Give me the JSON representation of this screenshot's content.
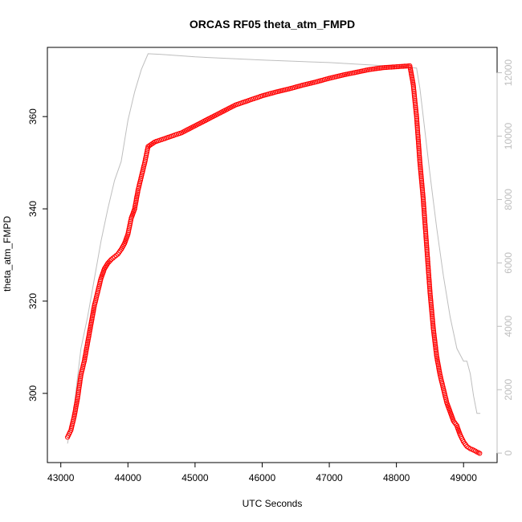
{
  "chart_data": {
    "type": "scatter",
    "title": "ORCAS RF05 theta_atm_FMPD",
    "xlabel": "UTC Seconds",
    "ylabel": "theta_atm_FMPD",
    "xlim": [
      42800,
      49500
    ],
    "ylim": [
      285,
      375
    ],
    "y2lim": [
      -300,
      12800
    ],
    "x_ticks": [
      43000,
      44000,
      45000,
      46000,
      47000,
      48000,
      49000
    ],
    "y_ticks": [
      300,
      320,
      340,
      360
    ],
    "y2_ticks": [
      0,
      2000,
      4000,
      6000,
      8000,
      10000,
      12000
    ],
    "colors": {
      "points": "#ff0000",
      "altitude_line": "#bebebe",
      "axes": "#000000",
      "right_axis": "#bebebe"
    },
    "series": [
      {
        "role": "theta_atm_FMPD (left axis, open red circles)",
        "marker": "circle-open",
        "x": [
          43100,
          43150,
          43200,
          43250,
          43300,
          43350,
          43400,
          43450,
          43500,
          43550,
          43600,
          43650,
          43700,
          43750,
          43800,
          43850,
          43900,
          43950,
          44000,
          44050,
          44100,
          44150,
          44200,
          44250,
          44300,
          44400,
          44600,
          44800,
          45000,
          45200,
          45400,
          45600,
          45800,
          46000,
          46200,
          46400,
          46600,
          46800,
          47000,
          47200,
          47400,
          47600,
          47800,
          48000,
          48200,
          48250,
          48300,
          48350,
          48400,
          48450,
          48500,
          48550,
          48600,
          48650,
          48700,
          48750,
          48800,
          48850,
          48900,
          48950,
          49000,
          49050,
          49100,
          49150,
          49200,
          49240
        ],
        "y": [
          290.5,
          292,
          295,
          299,
          304,
          307,
          311,
          315,
          319,
          322,
          325,
          327,
          328.2,
          329,
          329.6,
          330.2,
          331.2,
          332.5,
          334.5,
          338,
          340,
          344,
          347,
          350,
          353.5,
          354.5,
          355.5,
          356.5,
          358,
          359.5,
          361,
          362.5,
          363.5,
          364.5,
          365.3,
          366,
          366.8,
          367.5,
          368.3,
          369,
          369.6,
          370.2,
          370.6,
          370.8,
          371,
          367,
          360,
          350,
          342,
          332,
          322,
          314,
          308,
          304,
          301,
          298,
          296,
          294,
          293,
          291,
          289.5,
          288.5,
          288,
          287.7,
          287.3,
          287
        ]
      },
      {
        "role": "altitude (right axis, grey line)",
        "marker": "line",
        "x": [
          43100,
          43200,
          43300,
          43400,
          43500,
          43600,
          43700,
          43800,
          43900,
          44000,
          44100,
          44200,
          44300,
          44500,
          45000,
          46000,
          47000,
          48000,
          48300,
          48350,
          48400,
          48500,
          48600,
          48700,
          48800,
          48900,
          49000,
          49050,
          49100,
          49150,
          49200,
          49250
        ],
        "y": [
          300,
          1500,
          3300,
          4300,
          5500,
          6700,
          7700,
          8600,
          9200,
          10500,
          11400,
          12100,
          12600,
          12580,
          12500,
          12400,
          12320,
          12200,
          12150,
          11500,
          10600,
          8800,
          7100,
          5600,
          4300,
          3300,
          2900,
          2900,
          2500,
          1800,
          1250,
          1250
        ]
      }
    ]
  }
}
